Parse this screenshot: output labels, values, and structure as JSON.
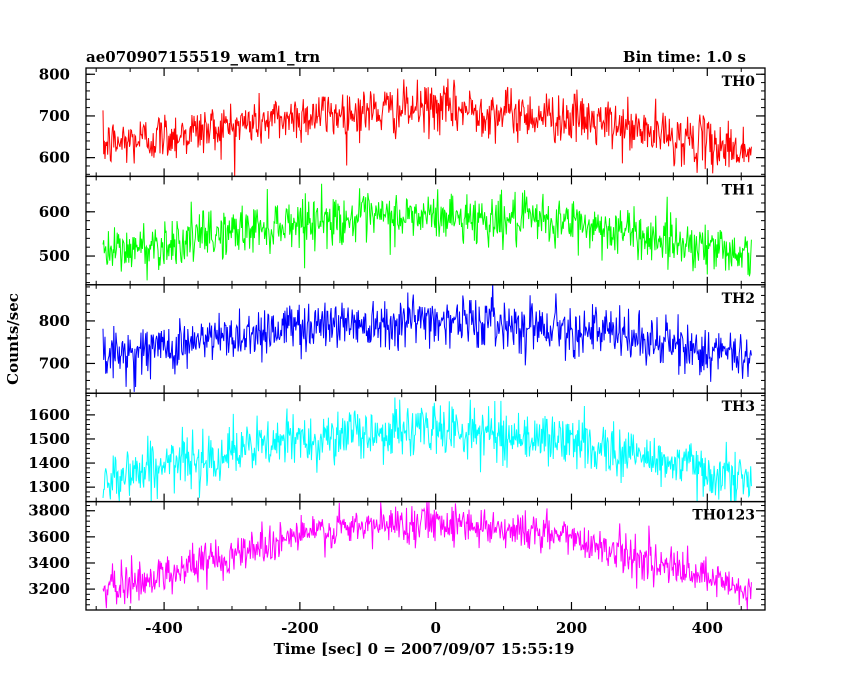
{
  "chart_data": {
    "type": "line",
    "title_left": "ae070907155519_wam1_trn",
    "title_right": "Bin time: 1.0 s",
    "xlabel": "Time [sec] 0 = 2007/09/07 15:55:19",
    "ylabel": "Counts/sec",
    "xlim": [
      -515,
      485
    ],
    "x_range": [
      -490,
      465
    ],
    "x_ticks": [
      -400,
      -200,
      0,
      200,
      400
    ],
    "grid": false,
    "panels": [
      {
        "label": "TH0",
        "color": "#ff0000",
        "ylim": [
          555,
          815
        ],
        "y_ticks": [
          600,
          700,
          800
        ],
        "profile_x": [
          -490,
          -200,
          0,
          200,
          465
        ],
        "profile_y": [
          630,
          700,
          720,
          695,
          615
        ],
        "noise_sd": 30
      },
      {
        "label": "TH1",
        "color": "#00ff00",
        "ylim": [
          435,
          680
        ],
        "y_ticks": [
          500,
          600
        ],
        "profile_x": [
          -490,
          -200,
          0,
          200,
          465
        ],
        "profile_y": [
          505,
          580,
          590,
          575,
          505
        ],
        "noise_sd": 28
      },
      {
        "label": "TH2",
        "color": "#0000ff",
        "ylim": [
          630,
          885
        ],
        "y_ticks": [
          700,
          800
        ],
        "profile_x": [
          -490,
          -200,
          0,
          200,
          465
        ],
        "profile_y": [
          715,
          790,
          805,
          785,
          710
        ],
        "noise_sd": 30
      },
      {
        "label": "TH3",
        "color": "#00ffff",
        "ylim": [
          1240,
          1690
        ],
        "y_ticks": [
          1300,
          1400,
          1500,
          1600
        ],
        "profile_x": [
          -490,
          -200,
          0,
          200,
          465
        ],
        "profile_y": [
          1340,
          1500,
          1545,
          1490,
          1330
        ],
        "noise_sd": 55
      },
      {
        "label": "TH0123",
        "color": "#ff00ff",
        "ylim": [
          3040,
          3870
        ],
        "y_ticks": [
          3200,
          3400,
          3600,
          3800
        ],
        "profile_x": [
          -490,
          -200,
          0,
          200,
          465
        ],
        "profile_y": [
          3180,
          3620,
          3730,
          3600,
          3170
        ],
        "noise_sd": 75
      }
    ]
  }
}
